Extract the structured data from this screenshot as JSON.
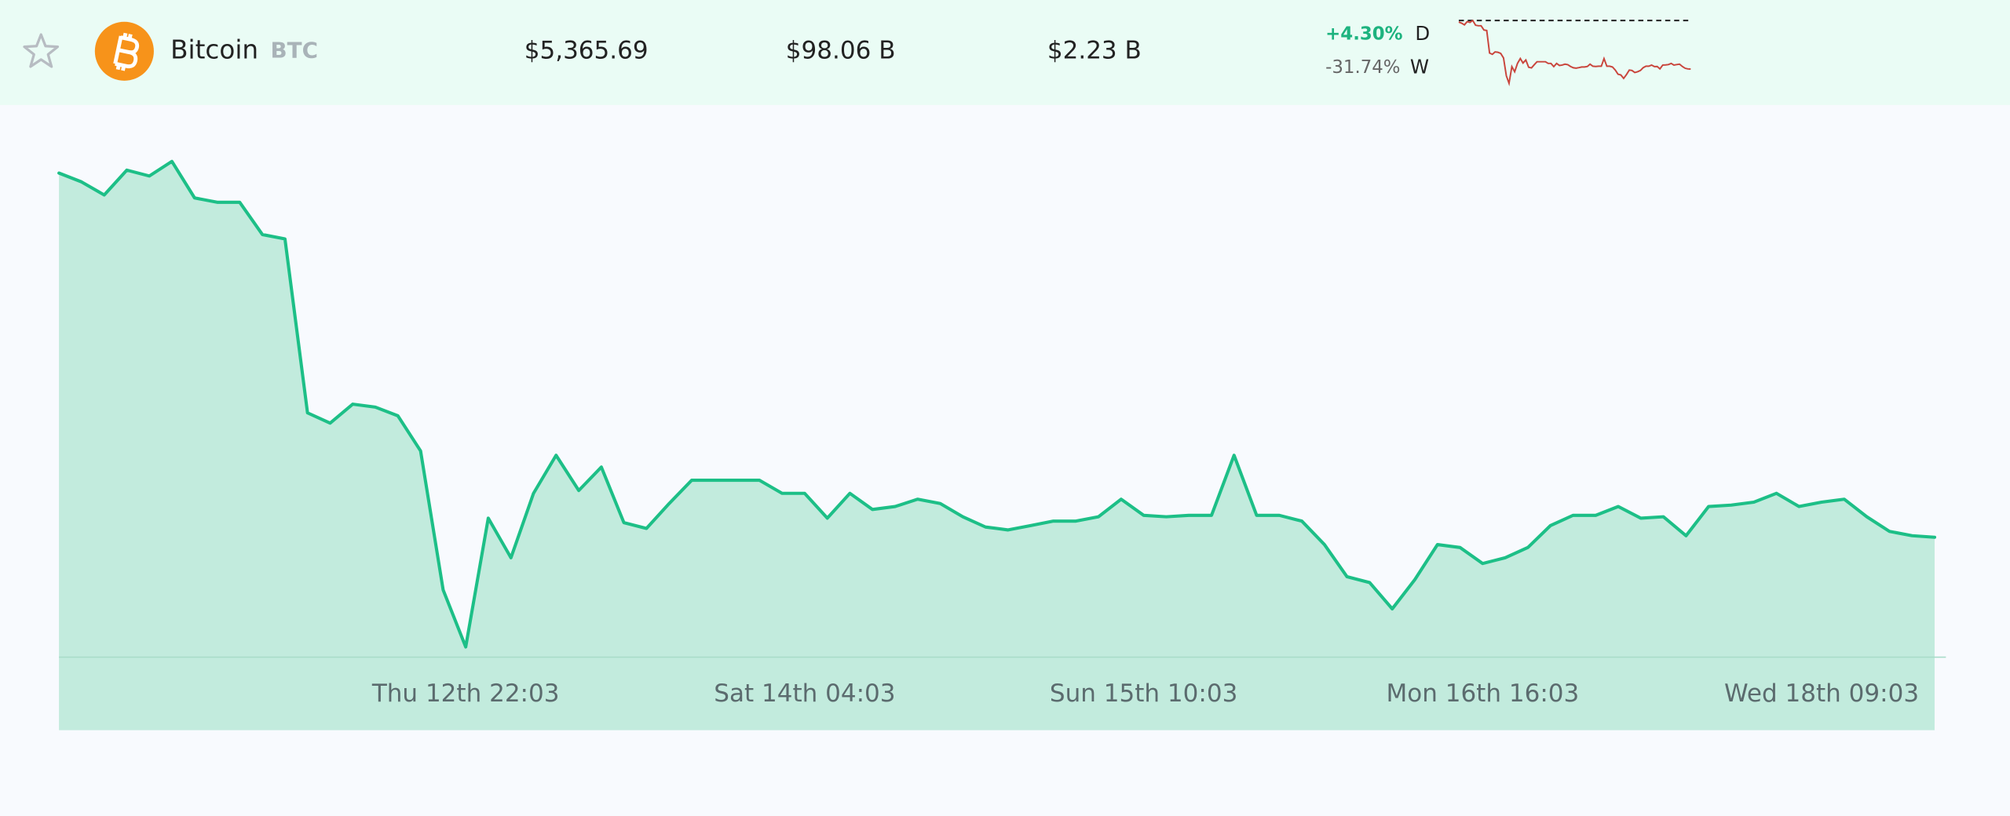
{
  "coin_row": {
    "name": "Bitcoin",
    "symbol": "BTC",
    "price": "$5,365.69",
    "market_cap": "$98.06 B",
    "volume": "$2.23 B",
    "change_day": "+4.30%",
    "day_label": "D",
    "change_week": "-31.74%",
    "week_label": "W"
  },
  "chart_data": {
    "type": "area",
    "color": "#1dbf87",
    "fill": "#c2ebdd",
    "x": [
      0,
      2,
      4,
      6,
      8,
      10,
      12,
      14,
      16,
      18,
      20,
      22,
      24,
      26,
      28,
      30,
      32,
      34,
      36,
      38,
      40,
      42,
      44,
      46,
      48,
      50,
      52,
      54,
      56,
      58,
      60,
      62,
      64,
      66,
      68,
      70,
      72,
      74,
      76,
      78,
      80,
      82,
      84,
      86,
      88,
      90,
      92,
      94,
      96,
      98,
      100,
      102,
      104,
      106,
      108,
      110,
      112,
      114,
      116,
      118,
      120,
      122,
      124,
      126,
      128,
      130,
      132,
      134,
      136,
      138,
      140,
      142,
      144,
      146,
      148,
      150,
      152,
      154,
      156,
      158,
      160,
      162,
      164,
      166
    ],
    "values": [
      7860,
      7800,
      7710,
      7880,
      7840,
      7940,
      7690,
      7660,
      7660,
      7440,
      7410,
      6220,
      6150,
      6280,
      6260,
      6200,
      5960,
      5010,
      4620,
      5500,
      5230,
      5670,
      5930,
      5690,
      5850,
      5470,
      5430,
      5600,
      5760,
      5760,
      5760,
      5760,
      5670,
      5670,
      5500,
      5670,
      5560,
      5580,
      5630,
      5600,
      5510,
      5440,
      5420,
      5450,
      5480,
      5480,
      5510,
      5630,
      5520,
      5510,
      5520,
      5520,
      5930,
      5520,
      5520,
      5480,
      5320,
      5100,
      5060,
      4880,
      5080,
      5320,
      5300,
      5190,
      5230,
      5300,
      5450,
      5520,
      5520,
      5580,
      5500,
      5510,
      5380,
      5580,
      5590,
      5610,
      5670,
      5580,
      5610,
      5630,
      5510,
      5410,
      5380,
      5370
    ],
    "xlim": [
      0,
      167
    ],
    "ylim": [
      4550,
      8150
    ],
    "xticks": [
      {
        "value": 36,
        "label": "Thu 12th 22:03"
      },
      {
        "value": 66,
        "label": "Sat 14th 04:03"
      },
      {
        "value": 96,
        "label": "Sun 15th 10:03"
      },
      {
        "value": 126,
        "label": "Mon 16th 16:03"
      },
      {
        "value": 156,
        "label": "Wed 18th 09:03"
      }
    ],
    "spark_color": "#c9453c"
  }
}
